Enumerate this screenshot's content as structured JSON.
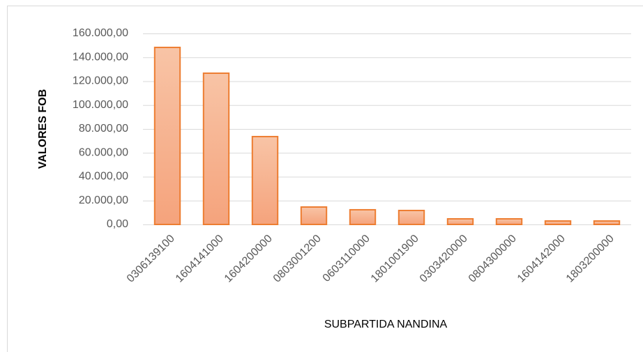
{
  "chart_data": {
    "type": "bar",
    "xlabel": "SUBPARTIDA NANDINA",
    "ylabel": "VALORES FOB",
    "categories": [
      "0306139100",
      "1604141000",
      "1604200000",
      "0803001200",
      "0603110000",
      "1801001900",
      "0303420000",
      "0804300000",
      "1604142000",
      "1803200000"
    ],
    "values": [
      148300,
      126700,
      73600,
      14600,
      12300,
      11700,
      4700,
      4700,
      2900,
      2900
    ],
    "color": "#ed7d31",
    "ylim": [
      0,
      160000
    ],
    "yticks": [
      {
        "value": 0,
        "label": "0,00"
      },
      {
        "value": 20000,
        "label": "20.000,00"
      },
      {
        "value": 40000,
        "label": "40.000,00"
      },
      {
        "value": 60000,
        "label": "60.000,00"
      },
      {
        "value": 80000,
        "label": "80.000,00"
      },
      {
        "value": 100000,
        "label": "100.000,00"
      },
      {
        "value": 120000,
        "label": "120.000,00"
      },
      {
        "value": 140000,
        "label": "140.000,00"
      },
      {
        "value": 160000,
        "label": "160.000,00"
      }
    ],
    "grid": true
  }
}
